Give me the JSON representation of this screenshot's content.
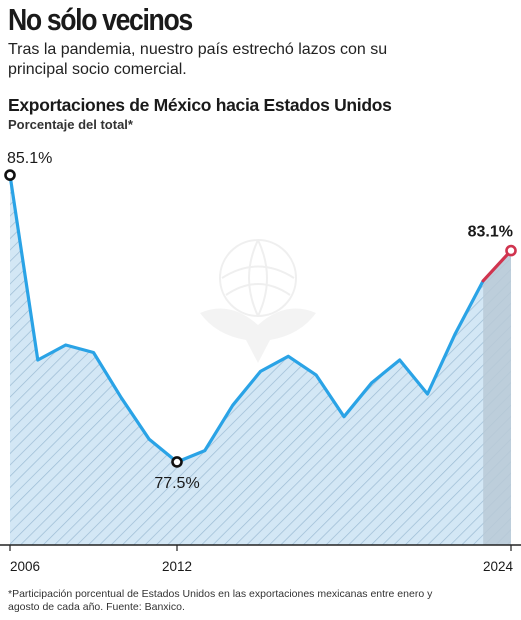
{
  "headline": "No sólo vecinos",
  "dek": "Tras la pandemia, nuestro país estrechó lazos con su principal socio comercial.",
  "footnote": "*Participación porcentual de Estados Unidos en las exportaciones mexicanas entre enero y agosto de cada año. Fuente: Banxico.",
  "colors": {
    "line": "#2aa3e6",
    "fill": "#d3e7f5",
    "hatch": "#9cbcd4",
    "highlight_fill": "#b9c9d6",
    "end_line": "#d0344f",
    "axis": "#222222"
  },
  "chart_data": {
    "type": "area",
    "title": "Exportaciones de México hacia Estados Unidos",
    "subtitle": "Porcentaje del total*",
    "x": [
      2006,
      2007,
      2008,
      2009,
      2010,
      2011,
      2012,
      2013,
      2014,
      2015,
      2016,
      2017,
      2018,
      2019,
      2020,
      2021,
      2022,
      2023,
      2024
    ],
    "values": [
      85.1,
      80.2,
      80.6,
      80.4,
      79.2,
      78.1,
      77.5,
      77.8,
      79.0,
      79.9,
      80.3,
      79.8,
      78.7,
      79.6,
      80.2,
      79.3,
      80.9,
      82.3,
      83.1
    ],
    "xticks": [
      "2006",
      "2012",
      "2024"
    ],
    "data_labels": [
      {
        "x": 2006,
        "text": "85.1%"
      },
      {
        "x": 2012,
        "text": "77.5%"
      },
      {
        "x": 2024,
        "text": "83.1%"
      }
    ],
    "xlim": [
      2006,
      2024
    ],
    "ylim": [
      75.3,
      85.5
    ],
    "grid": false,
    "highlight_range": [
      2023,
      2024
    ]
  }
}
